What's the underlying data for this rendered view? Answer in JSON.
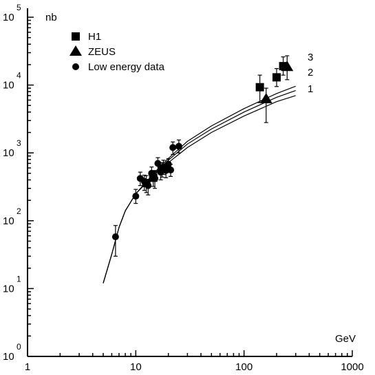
{
  "chart_data": {
    "type": "scatter",
    "title": "",
    "xlabel": "GeV",
    "ylabel": "nb",
    "x_scale": "log",
    "y_scale": "log",
    "xlim": [
      1,
      1000
    ],
    "ylim": [
      1,
      100000
    ],
    "x_ticks": [
      {
        "value": 1,
        "label": "1"
      },
      {
        "value": 10,
        "label": "10"
      },
      {
        "value": 100,
        "label": "100"
      },
      {
        "value": 1000,
        "label": "1000"
      }
    ],
    "y_ticks": [
      {
        "value": 1,
        "base": "10",
        "exp": "0"
      },
      {
        "value": 10,
        "base": "10",
        "exp": "1"
      },
      {
        "value": 100,
        "base": "10",
        "exp": "2"
      },
      {
        "value": 1000,
        "base": "10",
        "exp": "3"
      },
      {
        "value": 10000,
        "base": "10",
        "exp": "4"
      },
      {
        "value": 100000,
        "base": "10",
        "exp": "5"
      }
    ],
    "legend_position": "top-left",
    "series": [
      {
        "name": "H1",
        "marker": "square",
        "points": [
          {
            "x": 140,
            "y": 9300,
            "ylo": 5500,
            "yhi": 14000
          },
          {
            "x": 200,
            "y": 13000,
            "ylo": 9500,
            "yhi": 17500
          },
          {
            "x": 230,
            "y": 19000,
            "ylo": 14000,
            "yhi": 26000
          }
        ]
      },
      {
        "name": "ZEUS",
        "marker": "triangle",
        "points": [
          {
            "x": 160,
            "y": 6200,
            "ylo": 2800,
            "yhi": 9000
          },
          {
            "x": 250,
            "y": 18500,
            "ylo": 12000,
            "yhi": 27000
          }
        ]
      },
      {
        "name": "Low energy data",
        "marker": "circle",
        "points": [
          {
            "x": 6.5,
            "y": 58,
            "ylo": 30,
            "yhi": 85
          },
          {
            "x": 10,
            "y": 230,
            "ylo": 180,
            "yhi": 290
          },
          {
            "x": 11,
            "y": 420,
            "ylo": 330,
            "yhi": 520
          },
          {
            "x": 12,
            "y": 380,
            "ylo": 280,
            "yhi": 470
          },
          {
            "x": 13,
            "y": 330,
            "ylo": 240,
            "yhi": 400
          },
          {
            "x": 14,
            "y": 500,
            "ylo": 380,
            "yhi": 620
          },
          {
            "x": 15,
            "y": 420,
            "ylo": 300,
            "yhi": 550
          },
          {
            "x": 16,
            "y": 700,
            "ylo": 520,
            "yhi": 850
          },
          {
            "x": 17,
            "y": 520,
            "ylo": 400,
            "yhi": 650
          },
          {
            "x": 18,
            "y": 620,
            "ylo": 480,
            "yhi": 780
          },
          {
            "x": 19,
            "y": 550,
            "ylo": 430,
            "yhi": 680
          },
          {
            "x": 20,
            "y": 680,
            "ylo": 540,
            "yhi": 820
          },
          {
            "x": 21,
            "y": 560,
            "ylo": 450,
            "yhi": 680
          },
          {
            "x": 22,
            "y": 1200,
            "ylo": 950,
            "yhi": 1450
          },
          {
            "x": 25,
            "y": 1250,
            "ylo": 1000,
            "yhi": 1550
          }
        ]
      },
      {
        "name": "H1",
        "marker": "square",
        "points": [
          {
            "x": 12.5,
            "y": 360,
            "ylo": 260,
            "yhi": 460
          },
          {
            "x": 14.5,
            "y": 430,
            "ylo": 320,
            "yhi": 540
          },
          {
            "x": 17.5,
            "y": 580,
            "ylo": 440,
            "yhi": 720
          }
        ],
        "legend": false
      }
    ],
    "curves": [
      {
        "label": "1",
        "points": [
          [
            5,
            12
          ],
          [
            6,
            32
          ],
          [
            7,
            80
          ],
          [
            8,
            140
          ],
          [
            10,
            250
          ],
          [
            15,
            480
          ],
          [
            20,
            720
          ],
          [
            30,
            1200
          ],
          [
            50,
            2000
          ],
          [
            100,
            3500
          ],
          [
            200,
            5700
          ],
          [
            300,
            7000
          ]
        ]
      },
      {
        "label": "2",
        "points": [
          [
            5,
            12
          ],
          [
            6,
            32
          ],
          [
            7,
            80
          ],
          [
            8,
            140
          ],
          [
            10,
            250
          ],
          [
            15,
            500
          ],
          [
            20,
            780
          ],
          [
            30,
            1350
          ],
          [
            50,
            2250
          ],
          [
            100,
            4000
          ],
          [
            200,
            6600
          ],
          [
            300,
            8300
          ]
        ]
      },
      {
        "label": "3",
        "points": [
          [
            5,
            12
          ],
          [
            6,
            32
          ],
          [
            7,
            80
          ],
          [
            8,
            140
          ],
          [
            10,
            250
          ],
          [
            15,
            520
          ],
          [
            20,
            830
          ],
          [
            30,
            1480
          ],
          [
            50,
            2500
          ],
          [
            100,
            4500
          ],
          [
            200,
            7500
          ],
          [
            300,
            9600
          ]
        ]
      }
    ]
  }
}
